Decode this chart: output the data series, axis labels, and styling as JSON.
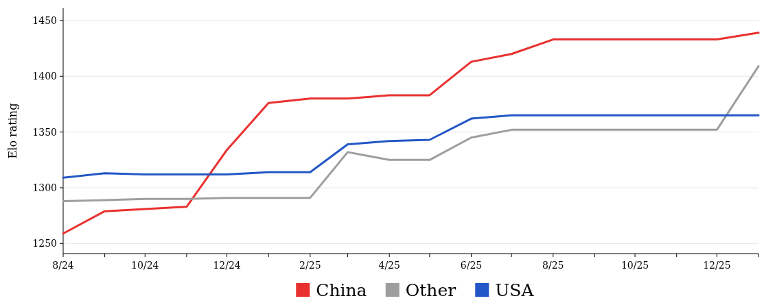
{
  "chart_data": {
    "type": "line",
    "ylabel": "Elo rating",
    "x": [
      "2024-08",
      "2024-09",
      "2024-10",
      "2024-11",
      "2024-12",
      "2025-01",
      "2025-02",
      "2025-03",
      "2025-04",
      "2025-05",
      "2025-06",
      "2025-07",
      "2025-08",
      "2025-09",
      "2025-10",
      "2025-11",
      "2025-12",
      "2026-01"
    ],
    "series": [
      {
        "name": "China",
        "color": "#e8312f",
        "values": [
          1259,
          1279,
          1281,
          1283,
          1334,
          1376,
          1380,
          1380,
          1383,
          1383,
          1413,
          1420,
          1433,
          1433,
          1433,
          1433,
          1433,
          1439
        ]
      },
      {
        "name": "Other",
        "color": "#9e9e9e",
        "values": [
          1288,
          1289,
          1290,
          1290,
          1291,
          1291,
          1291,
          1332,
          1325,
          1325,
          1345,
          1352,
          1352,
          1352,
          1352,
          1352,
          1352,
          1409
        ]
      },
      {
        "name": "USA",
        "color": "#2356c6",
        "values": [
          1309,
          1313,
          1312,
          1312,
          1312,
          1314,
          1314,
          1339,
          1342,
          1343,
          1362,
          1365,
          1365,
          1365,
          1365,
          1365,
          1365,
          1365
        ]
      }
    ],
    "xlim": [
      "2024-08",
      "2026-01"
    ],
    "xticks": [
      {
        "value": "2024-08",
        "label": "8/24"
      },
      {
        "value": "2024-09",
        "label": null
      },
      {
        "value": "2024-10",
        "label": "10/24"
      },
      {
        "value": "2024-11",
        "label": null
      },
      {
        "value": "2024-12",
        "label": "12/24"
      },
      {
        "value": "2025-01",
        "label": null
      },
      {
        "value": "2025-02",
        "label": "2/25"
      },
      {
        "value": "2025-03",
        "label": null
      },
      {
        "value": "2025-04",
        "label": "4/25"
      },
      {
        "value": "2025-05",
        "label": null
      },
      {
        "value": "2025-06",
        "label": "6/25"
      },
      {
        "value": "2025-07",
        "label": null
      },
      {
        "value": "2025-08",
        "label": "8/25"
      },
      {
        "value": "2025-09",
        "label": null
      },
      {
        "value": "2025-10",
        "label": "10/25"
      },
      {
        "value": "2025-11",
        "label": null
      },
      {
        "value": "2025-12",
        "label": "12/25"
      },
      {
        "value": "2026-01",
        "label": null
      }
    ],
    "ylim": [
      1241,
      1461
    ],
    "yticks": [
      1250,
      1300,
      1350,
      1400,
      1450
    ],
    "grid": "y",
    "legend": "bottom",
    "marker": "none",
    "line_style": "solid"
  }
}
